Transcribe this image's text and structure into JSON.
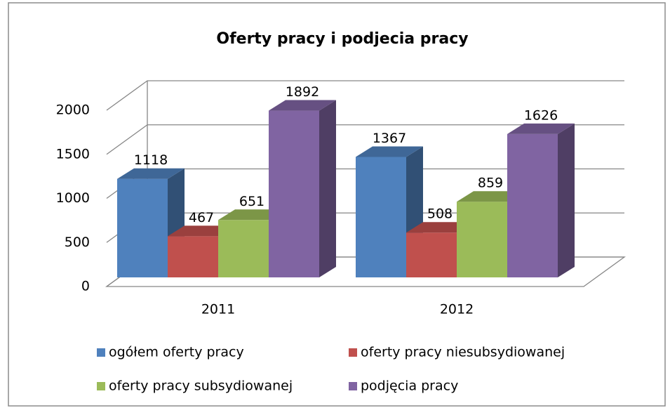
{
  "chart_data": {
    "type": "bar3d",
    "title": "Oferty pracy i podjecia pracy",
    "categories": [
      "2011",
      "2012"
    ],
    "series": [
      {
        "name": "ogółem oferty pracy",
        "color": "#4f81bd",
        "values": [
          1118,
          1367
        ]
      },
      {
        "name": "oferty pracy niesubsydiowanej",
        "color": "#c0504d",
        "values": [
          467,
          508
        ]
      },
      {
        "name": "oferty pracy subsydiowanej",
        "color": "#9bbb59",
        "values": [
          651,
          859
        ]
      },
      {
        "name": "podjęcia pracy",
        "color": "#8064a2",
        "values": [
          1892,
          1626
        ]
      }
    ],
    "ylim": [
      0,
      2000
    ],
    "yticks": [
      0,
      500,
      1000,
      1500,
      2000
    ],
    "grid": true
  }
}
